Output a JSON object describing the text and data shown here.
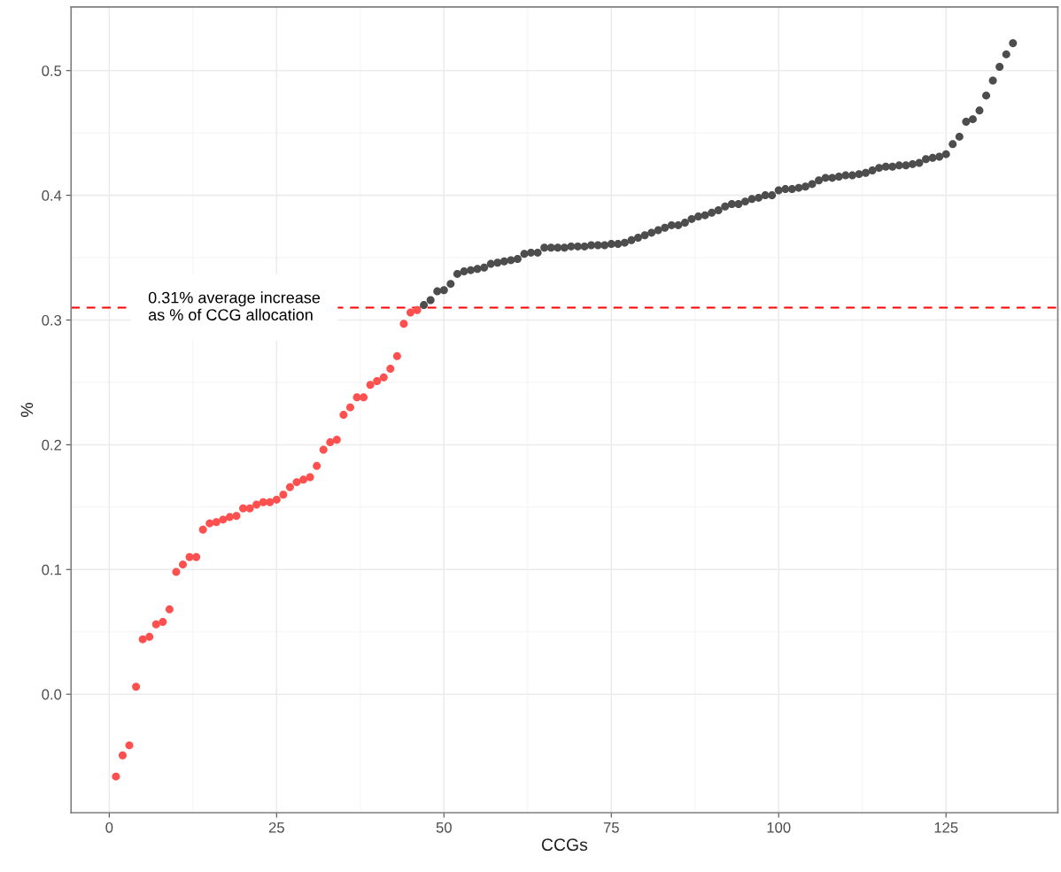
{
  "chart_data": {
    "type": "scatter",
    "xlabel": "CCGs",
    "ylabel": "%",
    "xlim": [
      -5.7,
      141.7
    ],
    "ylim": [
      -0.095,
      0.551
    ],
    "xticks": [
      0,
      25,
      50,
      75,
      100,
      125
    ],
    "yticks": [
      {
        "value": 0.0,
        "label": "0.0"
      },
      0.1,
      0.2,
      0.3,
      0.4,
      0.5
    ],
    "grid": true,
    "marker": "circle",
    "ref_lines": [
      {
        "axis": "y",
        "value": 0.31,
        "label": "0.31% average increase\nas % of CCG allocation",
        "color": "#ff0000",
        "line_style": "dashed"
      }
    ],
    "series": [
      {
        "color": "#ff5050",
        "x": [
          1,
          2,
          3,
          4,
          5,
          6,
          7,
          8,
          9,
          10,
          11,
          12,
          13,
          14,
          15,
          16,
          17,
          18,
          19,
          20,
          21,
          22,
          23,
          24,
          25,
          26,
          27,
          28,
          29,
          30,
          31,
          32,
          33,
          34,
          35,
          36,
          37,
          38,
          39,
          40,
          41,
          42,
          43,
          44,
          45,
          46
        ],
        "values": [
          -0.066,
          -0.049,
          -0.041,
          0.006,
          0.044,
          0.046,
          0.056,
          0.058,
          0.068,
          0.098,
          0.104,
          0.11,
          0.11,
          0.132,
          0.137,
          0.138,
          0.14,
          0.142,
          0.143,
          0.149,
          0.149,
          0.152,
          0.154,
          0.154,
          0.156,
          0.16,
          0.166,
          0.17,
          0.172,
          0.174,
          0.183,
          0.196,
          0.202,
          0.204,
          0.224,
          0.23,
          0.238,
          0.238,
          0.248,
          0.251,
          0.254,
          0.261,
          0.271,
          0.297,
          0.306,
          0.308
        ]
      },
      {
        "color": "#4d4d4d",
        "x": [
          47,
          48,
          49,
          50,
          51,
          52,
          53,
          54,
          55,
          56,
          57,
          58,
          59,
          60,
          61,
          62,
          63,
          64,
          65,
          66,
          67,
          68,
          69,
          70,
          71,
          72,
          73,
          74,
          75,
          76,
          77,
          78,
          79,
          80,
          81,
          82,
          83,
          84,
          85,
          86,
          87,
          88,
          89,
          90,
          91,
          92,
          93,
          94,
          95,
          96,
          97,
          98,
          99,
          100,
          101,
          102,
          103,
          104,
          105,
          106,
          107,
          108,
          109,
          110,
          111,
          112,
          113,
          114,
          115,
          116,
          117,
          118,
          119,
          120,
          121,
          122,
          123,
          124,
          125,
          126,
          127,
          128,
          129,
          130,
          131,
          132,
          133,
          134,
          135
        ],
        "values": [
          0.312,
          0.316,
          0.323,
          0.324,
          0.329,
          0.337,
          0.339,
          0.34,
          0.341,
          0.342,
          0.345,
          0.346,
          0.347,
          0.348,
          0.349,
          0.353,
          0.354,
          0.354,
          0.358,
          0.358,
          0.358,
          0.358,
          0.359,
          0.359,
          0.359,
          0.36,
          0.36,
          0.36,
          0.361,
          0.361,
          0.362,
          0.364,
          0.366,
          0.368,
          0.37,
          0.372,
          0.374,
          0.376,
          0.376,
          0.378,
          0.381,
          0.383,
          0.384,
          0.386,
          0.388,
          0.391,
          0.393,
          0.393,
          0.395,
          0.397,
          0.398,
          0.4,
          0.4,
          0.404,
          0.405,
          0.405,
          0.406,
          0.407,
          0.409,
          0.412,
          0.414,
          0.414,
          0.415,
          0.416,
          0.416,
          0.417,
          0.418,
          0.42,
          0.422,
          0.423,
          0.423,
          0.424,
          0.424,
          0.425,
          0.426,
          0.429,
          0.43,
          0.431,
          0.433,
          0.441,
          0.447,
          0.459,
          0.461,
          0.468,
          0.48,
          0.492,
          0.503,
          0.513,
          0.522
        ]
      }
    ]
  }
}
